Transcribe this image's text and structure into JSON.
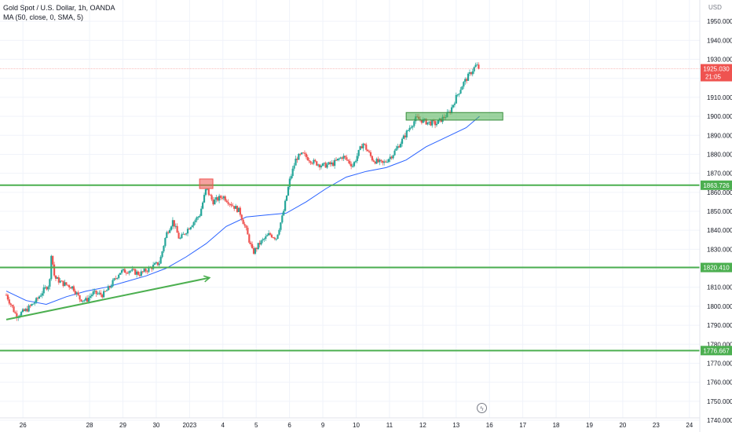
{
  "header": {
    "symbol_line": "Gold Spot / U.S. Dollar, 1h, OANDA",
    "indicator_line": "MA (50, close, 0, SMA, 5)"
  },
  "icons": {
    "replay": "lightning-icon"
  },
  "colors": {
    "up": "#26a69a",
    "down": "#ef5350",
    "ma": "#2962ff",
    "levels": "#4caf50",
    "grid": "#f0f3fa",
    "axis_text": "#131722"
  },
  "chart_data": {
    "type": "candlestick",
    "title": "Gold Spot / U.S. Dollar, 1h, OANDA",
    "currency_label": "USD",
    "ylim": [
      1740,
      1960
    ],
    "yticks": [
      1740,
      1750,
      1760,
      1770,
      1780,
      1790,
      1800,
      1810,
      1820,
      1830,
      1840,
      1850,
      1860,
      1870,
      1880,
      1890,
      1900,
      1910,
      1920,
      1930,
      1940,
      1950
    ],
    "ytick_labels": [
      "1740.000",
      "1750.000",
      "1760.000",
      "1770.000",
      "1780.000",
      "1790.000",
      "1800.000",
      "1810.000",
      "1820.000",
      "1830.000",
      "1840.000",
      "1850.000",
      "1860.000",
      "1870.000",
      "1880.000",
      "1890.000",
      "1900.000",
      "1910.000",
      "1920.000",
      "1930.000",
      "1940.000",
      "1950.000"
    ],
    "xticks": [
      {
        "label": "26",
        "x": 0.5
      },
      {
        "label": "28",
        "x": 2.5
      },
      {
        "label": "29",
        "x": 3.5
      },
      {
        "label": "30",
        "x": 4.5
      },
      {
        "label": "2023",
        "x": 5.5
      },
      {
        "label": "4",
        "x": 6.5
      },
      {
        "label": "5",
        "x": 7.5
      },
      {
        "label": "6",
        "x": 8.5
      },
      {
        "label": "9",
        "x": 9.5
      },
      {
        "label": "10",
        "x": 10.5
      },
      {
        "label": "11",
        "x": 11.5
      },
      {
        "label": "12",
        "x": 12.5
      },
      {
        "label": "13",
        "x": 13.5
      },
      {
        "label": "16",
        "x": 14.5
      },
      {
        "label": "17",
        "x": 15.5
      },
      {
        "label": "18",
        "x": 16.5
      },
      {
        "label": "19",
        "x": 17.5
      },
      {
        "label": "20",
        "x": 18.5
      },
      {
        "label": "23",
        "x": 19.5
      },
      {
        "label": "24",
        "x": 20.5
      }
    ],
    "xlim": [
      0,
      21
    ],
    "close_path": [
      [
        0,
        1806
      ],
      [
        0.3,
        1795
      ],
      [
        0.6,
        1798
      ],
      [
        0.9,
        1803
      ],
      [
        1.1,
        1808
      ],
      [
        1.3,
        1812
      ],
      [
        1.35,
        1828
      ],
      [
        1.45,
        1815
      ],
      [
        1.7,
        1812
      ],
      [
        2.0,
        1810
      ],
      [
        2.2,
        1804
      ],
      [
        2.4,
        1803
      ],
      [
        2.6,
        1807
      ],
      [
        2.9,
        1806
      ],
      [
        3.1,
        1810
      ],
      [
        3.4,
        1818
      ],
      [
        3.7,
        1819
      ],
      [
        4.0,
        1817
      ],
      [
        4.3,
        1820
      ],
      [
        4.6,
        1823
      ],
      [
        4.8,
        1838
      ],
      [
        5.0,
        1845
      ],
      [
        5.2,
        1835
      ],
      [
        5.5,
        1842
      ],
      [
        5.8,
        1848
      ],
      [
        6.0,
        1862
      ],
      [
        6.2,
        1855
      ],
      [
        6.5,
        1858
      ],
      [
        6.8,
        1853
      ],
      [
        7.0,
        1850
      ],
      [
        7.2,
        1840
      ],
      [
        7.4,
        1828
      ],
      [
        7.6,
        1833
      ],
      [
        7.9,
        1838
      ],
      [
        8.1,
        1836
      ],
      [
        8.3,
        1848
      ],
      [
        8.5,
        1866
      ],
      [
        8.7,
        1878
      ],
      [
        8.9,
        1880
      ],
      [
        9.2,
        1876
      ],
      [
        9.5,
        1874
      ],
      [
        9.8,
        1875
      ],
      [
        10.1,
        1879
      ],
      [
        10.4,
        1874
      ],
      [
        10.7,
        1886
      ],
      [
        11.0,
        1877
      ],
      [
        11.3,
        1875
      ],
      [
        11.6,
        1880
      ],
      [
        11.9,
        1888
      ],
      [
        12.1,
        1894
      ],
      [
        12.3,
        1899
      ],
      [
        12.6,
        1897
      ],
      [
        12.9,
        1896
      ],
      [
        13.1,
        1899
      ],
      [
        13.3,
        1902
      ],
      [
        13.5,
        1910
      ],
      [
        13.7,
        1917
      ],
      [
        13.9,
        1922
      ],
      [
        14.1,
        1927
      ],
      [
        14.2,
        1925
      ]
    ],
    "ma_path": [
      [
        0,
        1808
      ],
      [
        0.6,
        1803
      ],
      [
        1.2,
        1801
      ],
      [
        1.8,
        1805
      ],
      [
        2.4,
        1808
      ],
      [
        3.0,
        1810
      ],
      [
        3.6,
        1813
      ],
      [
        4.2,
        1816
      ],
      [
        4.8,
        1820
      ],
      [
        5.4,
        1826
      ],
      [
        6.0,
        1833
      ],
      [
        6.6,
        1842
      ],
      [
        7.2,
        1847
      ],
      [
        7.8,
        1848
      ],
      [
        8.4,
        1849
      ],
      [
        9.0,
        1855
      ],
      [
        9.6,
        1862
      ],
      [
        10.2,
        1868
      ],
      [
        10.8,
        1871
      ],
      [
        11.4,
        1873
      ],
      [
        12.0,
        1877
      ],
      [
        12.6,
        1884
      ],
      [
        13.2,
        1889
      ],
      [
        13.8,
        1894
      ],
      [
        14.2,
        1900
      ]
    ],
    "horizontal_levels": [
      {
        "value": 1863.726,
        "label": "1863.726"
      },
      {
        "value": 1820.41,
        "label": "1820.410"
      },
      {
        "value": 1776.667,
        "label": "1776.667"
      }
    ],
    "current_price": {
      "value": 1925.03,
      "label": "1925.030",
      "countdown": "21:05"
    },
    "annotations": {
      "trendline": {
        "from": [
          0,
          1793
        ],
        "to": [
          6.1,
          1815
        ]
      },
      "red_box": {
        "x": [
          5.8,
          6.2
        ],
        "y": [
          1862,
          1867
        ]
      },
      "green_box": {
        "x": [
          12.0,
          14.9
        ],
        "y": [
          1898,
          1902
        ]
      }
    }
  }
}
